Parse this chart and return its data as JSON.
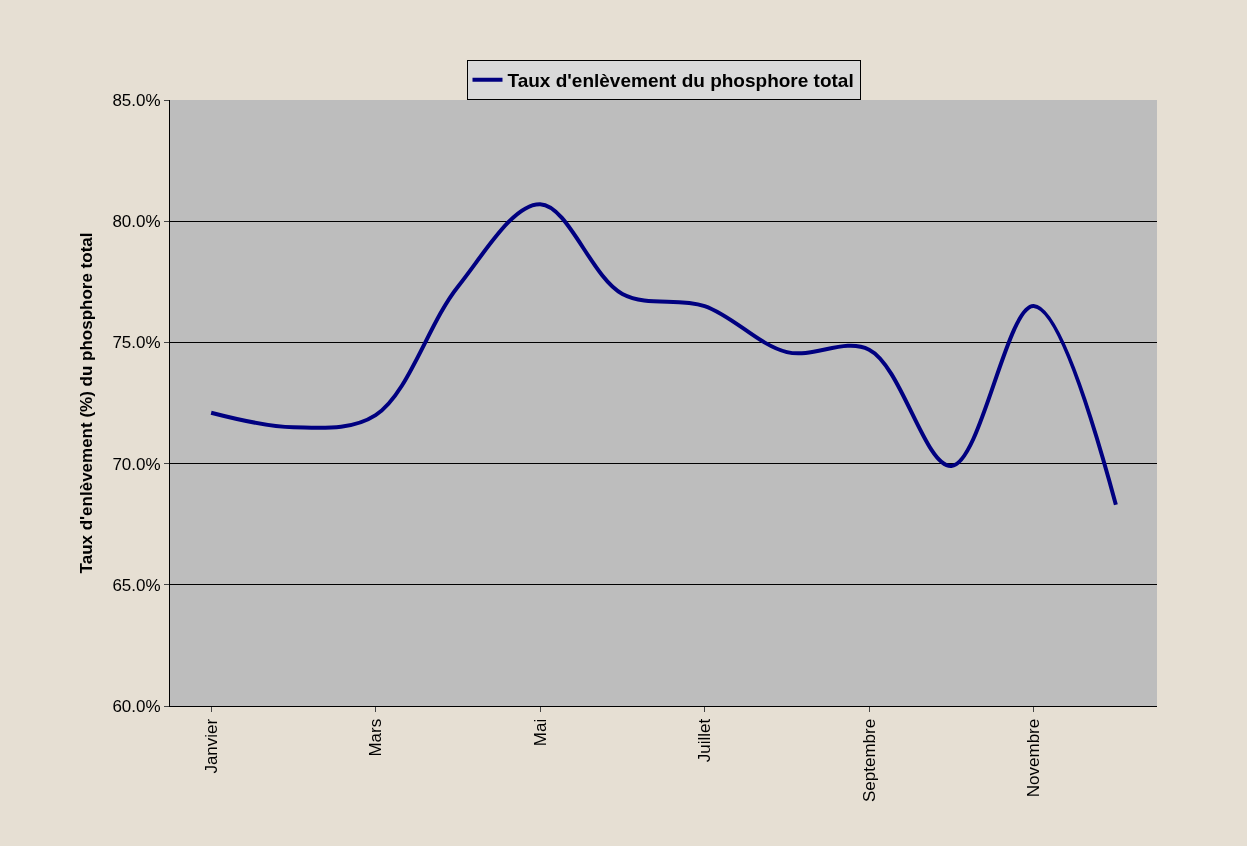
{
  "chart_data": {
    "type": "line",
    "ylabel": "Taux d'enlèvement (%) du phosphore total",
    "categories": [
      "Janvier",
      null,
      "Mars",
      null,
      "Mai",
      null,
      "Juillet",
      null,
      "Septembre",
      null,
      "Novembre",
      null
    ],
    "series": [
      {
        "name": "Taux d'enlèvement du phosphore total",
        "color": "#000080",
        "values": [
          72.1,
          71.5,
          72.0,
          77.3,
          80.7,
          77.0,
          76.5,
          74.6,
          74.7,
          69.9,
          76.5,
          68.3
        ]
      }
    ],
    "ylim": [
      60,
      85
    ],
    "yticks": [
      {
        "value": 60,
        "label": "60.0%"
      },
      {
        "value": 65,
        "label": "65.0%"
      },
      {
        "value": 70,
        "label": "70.0%"
      },
      {
        "value": 75,
        "label": "75.0%"
      },
      {
        "value": 80,
        "label": "80.0%"
      },
      {
        "value": 85,
        "label": "85.0%"
      }
    ],
    "grid": "y",
    "legend": "top",
    "marker": "none",
    "line_style": "solid"
  }
}
